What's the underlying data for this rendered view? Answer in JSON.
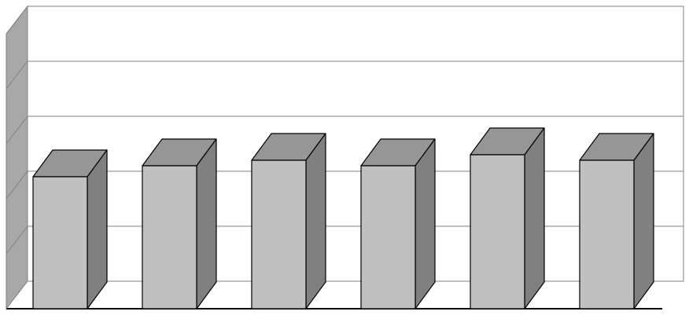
{
  "chart_data": {
    "type": "bar3d",
    "values": [
      2.4,
      2.6,
      2.7,
      2.6,
      2.8,
      2.7
    ],
    "color": "#c0c0c0",
    "ylim": [
      0,
      5
    ],
    "yticks": [
      0,
      1,
      2,
      3,
      4,
      5
    ],
    "grid": true
  }
}
